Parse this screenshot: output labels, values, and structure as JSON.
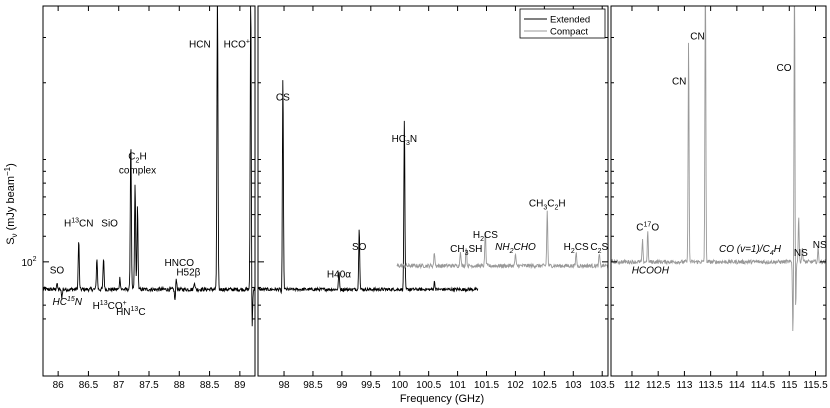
{
  "chart_data": {
    "type": "line",
    "xlabel": "Frequency (GHz)",
    "ylabel_parts": {
      "main": "S",
      "sub": "ν",
      "unit_open": " (mJy beam",
      "unit_sup": "−1",
      "unit_close": ")"
    },
    "y_scale": "log",
    "y_tick": {
      "label_base": "10",
      "label_exp": "2"
    },
    "legend": {
      "placement": "top-right of middle panel",
      "entries": [
        {
          "name": "Extended",
          "color": "#000000"
        },
        {
          "name": "Compact",
          "color": "#999999"
        }
      ]
    },
    "panels": [
      {
        "id": "left",
        "xlim": [
          85.75,
          89.25
        ],
        "xticks": [
          "86",
          "86.5",
          "87",
          "87.5",
          "88",
          "88.5",
          "89"
        ],
        "xtick_values": [
          86,
          86.5,
          87,
          87.5,
          88,
          88.5,
          89
        ],
        "series": [
          {
            "name": "Extended",
            "color": "#000000",
            "baseline": 1.0,
            "noise": 0.05,
            "peaks": [
              [
                85.98,
                0.15
              ],
              [
                86.34,
                1.25
              ],
              [
                86.64,
                0.8
              ],
              [
                86.75,
                0.8
              ],
              [
                87.02,
                0.3
              ],
              [
                87.2,
                3.8
              ],
              [
                87.27,
                2.7
              ],
              [
                87.31,
                2.1
              ],
              [
                87.95,
                0.3
              ],
              [
                88.25,
                0.2
              ],
              [
                88.63,
                7.6
              ],
              [
                89.18,
                7.6
              ]
            ],
            "dips": [
              [
                86.06,
                -0.2
              ],
              [
                87.93,
                -0.3
              ],
              [
                89.2,
                -1.2
              ]
            ]
          }
        ],
        "labels": [
          {
            "text": "SO",
            "x": 85.98,
            "y": 1.4
          },
          {
            "text": "H13CN",
            "x": 86.34,
            "y": 2.6,
            "sup_after": "H",
            "sup": "13",
            "rest": "CN"
          },
          {
            "text": "SiO",
            "x": 86.85,
            "y": 2.6
          },
          {
            "text": "C2H",
            "x": 87.31,
            "y": 4.3,
            "sub_after": "C",
            "sub": "2",
            "rest": "H"
          },
          {
            "text": "complex",
            "x": 87.31,
            "y": 3.95
          },
          {
            "text": "HNCO",
            "x": 88.0,
            "y": 1.6
          },
          {
            "text": "H52β",
            "x": 88.15,
            "y": 1.35
          },
          {
            "text": "HCN",
            "x": 88.34,
            "y": 7.15
          },
          {
            "text": "HCO+",
            "x": 88.95,
            "y": 7.15,
            "sup_after": "HCO",
            "sup": "+"
          },
          {
            "text": "HC15N",
            "x": 86.15,
            "y": 0.6,
            "italic": true,
            "sup_after": "HC",
            "sup": "15",
            "rest": "N"
          },
          {
            "text": "H13CO+",
            "x": 86.85,
            "y": 0.5,
            "sup_after": "H",
            "sup": "13",
            "rest": "CO",
            "sup2": "+"
          },
          {
            "text": "HN13C",
            "x": 87.2,
            "y": 0.35,
            "sup_after": "HN",
            "sup": "13",
            "rest": "C"
          }
        ]
      },
      {
        "id": "middle",
        "xlim": [
          97.55,
          103.6
        ],
        "xticks": [
          "98",
          "98.5",
          "99",
          "99.5",
          "100",
          "100.5",
          "101",
          "101.5",
          "102",
          "102.5",
          "103",
          "103.5"
        ],
        "xtick_values": [
          98,
          98.5,
          99,
          99.5,
          100,
          100.5,
          101,
          101.5,
          102,
          102.5,
          103,
          103.5
        ],
        "series": [
          {
            "name": "Extended",
            "color": "#000000",
            "range": [
              97.55,
              101.35
            ],
            "baseline": 1.0,
            "noise": 0.04,
            "peaks": [
              [
                97.98,
                5.4
              ],
              [
                98.95,
                0.45
              ],
              [
                99.3,
                1.6
              ],
              [
                100.08,
                4.35
              ],
              [
                100.6,
                0.2
              ]
            ],
            "dips": [
              [
                97.96,
                -0.2
              ]
            ]
          },
          {
            "name": "Compact",
            "color": "#999999",
            "range": [
              99.95,
              103.6
            ],
            "baseline": 1.6,
            "noise": 0.05,
            "peaks": [
              [
                100.6,
                0.35
              ],
              [
                101.05,
                0.4
              ],
              [
                101.15,
                0.5
              ],
              [
                101.48,
                0.9
              ],
              [
                102.0,
                0.3
              ],
              [
                102.55,
                1.4
              ],
              [
                103.05,
                0.35
              ],
              [
                103.45,
                0.3
              ]
            ],
            "dips": []
          }
        ],
        "labels": [
          {
            "text": "CS",
            "x": 97.98,
            "y": 5.8
          },
          {
            "text": "H40α",
            "x": 98.95,
            "y": 1.3
          },
          {
            "text": "SO",
            "x": 99.3,
            "y": 2.0
          },
          {
            "text": "HC3N",
            "x": 100.08,
            "y": 4.75,
            "sub_after": "HC",
            "sub": "3",
            "rest": "N"
          },
          {
            "text": "CH3SH",
            "x": 101.15,
            "y": 1.95,
            "sub_after": "CH",
            "sub": "3",
            "rest": "SH"
          },
          {
            "text": "H2CS",
            "x": 101.48,
            "y": 2.3,
            "sub_after": "H",
            "sub": "2",
            "rest": "CS"
          },
          {
            "text": "NH2CHO",
            "x": 102.0,
            "y": 2.0,
            "italic": true,
            "sub_after": "NH",
            "sub": "2",
            "rest": "CHO"
          },
          {
            "text": "CH3C2H",
            "x": 102.55,
            "y": 3.1,
            "sub_after": "CH",
            "sub": "3",
            "rest": "C",
            "sub2": "2",
            "rest2": "H"
          },
          {
            "text": "H2CS",
            "x": 103.05,
            "y": 2.0,
            "sub_after": "H",
            "sub": "2",
            "rest": "CS"
          },
          {
            "text": "C2S",
            "x": 103.45,
            "y": 2.0,
            "sub_after": "C",
            "sub": "2",
            "rest": "S"
          }
        ]
      },
      {
        "id": "right",
        "xlim": [
          111.6,
          115.7
        ],
        "xticks": [
          "112",
          "112.5",
          "113",
          "113.5",
          "114",
          "114.5",
          "115",
          "115.5"
        ],
        "xtick_values": [
          112,
          112.5,
          113,
          113.5,
          114,
          114.5,
          115,
          115.5
        ],
        "series": [
          {
            "name": "Compact",
            "color": "#999999",
            "baseline": 1.7,
            "noise": 0.05,
            "peaks": [
              [
                112.2,
                0.55
              ],
              [
                112.3,
                0.8
              ],
              [
                113.08,
                5.7
              ],
              [
                113.4,
                7.6
              ],
              [
                115.1,
                7.6
              ],
              [
                115.18,
                1.2
              ],
              [
                115.25,
                0.4
              ],
              [
                115.55,
                0.35
              ]
            ],
            "dips": [
              [
                115.07,
                -1.8
              ],
              [
                115.12,
                -1.5
              ]
            ]
          }
        ],
        "labels": [
          {
            "text": "C17O",
            "x": 112.3,
            "y": 2.5,
            "sup_after": "C",
            "sup": "17",
            "rest": "O"
          },
          {
            "text": "HCOOH",
            "x": 112.35,
            "y": 1.4,
            "italic": true
          },
          {
            "text": "CN",
            "x": 112.9,
            "y": 6.2
          },
          {
            "text": "CN",
            "x": 113.25,
            "y": 7.35
          },
          {
            "text": "CO (v=1)/C4H",
            "x": 114.25,
            "y": 1.95,
            "italic": true,
            "sub_after": "CO (v=1)/C",
            "sub": "4",
            "rest": "H"
          },
          {
            "text": "NS",
            "x": 115.22,
            "y": 1.85
          },
          {
            "text": "CO",
            "x": 114.9,
            "y": 6.55
          },
          {
            "text": "NS",
            "x": 115.58,
            "y": 2.05
          }
        ]
      }
    ],
    "y_range": [
      -1.2,
      8.2
    ],
    "y_tick_value": 1.7
  }
}
